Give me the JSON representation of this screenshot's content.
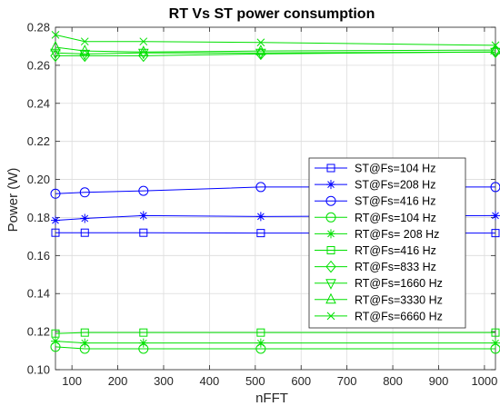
{
  "chart_data": {
    "type": "line",
    "title": "RT Vs ST power consumption",
    "xlabel": "nFFT",
    "ylabel": "Power (W)",
    "xlim": [
      64,
      1024
    ],
    "ylim": [
      0.1,
      0.28
    ],
    "xticks": [
      100,
      200,
      300,
      400,
      500,
      600,
      700,
      800,
      900,
      1000
    ],
    "yticks": [
      0.1,
      0.12,
      0.14,
      0.16,
      0.18,
      0.2,
      0.22,
      0.24,
      0.26,
      0.28
    ],
    "grid": true,
    "legend_position": "right",
    "x": [
      64,
      128,
      256,
      512,
      1024
    ],
    "series": [
      {
        "name": "ST@Fs=104 Hz",
        "marker": "square",
        "color": "#0000ff",
        "values": [
          0.172,
          0.172,
          0.172,
          0.1718,
          0.1718
        ]
      },
      {
        "name": "ST@Fs=208 Hz",
        "marker": "asterisk",
        "color": "#0000ff",
        "values": [
          0.1785,
          0.1795,
          0.181,
          0.1805,
          0.181
        ]
      },
      {
        "name": "ST@Fs=416 Hz",
        "marker": "circle",
        "color": "#0000ff",
        "values": [
          0.1925,
          0.1932,
          0.194,
          0.196,
          0.196
        ]
      },
      {
        "name": "RT@Fs=104 Hz",
        "marker": "circle",
        "color": "#00e000",
        "values": [
          0.112,
          0.111,
          0.111,
          0.111,
          0.111
        ]
      },
      {
        "name": "RT@Fs= 208 Hz",
        "marker": "asterisk",
        "color": "#00e000",
        "values": [
          0.115,
          0.114,
          0.114,
          0.114,
          0.114
        ]
      },
      {
        "name": "RT@Fs=416 Hz",
        "marker": "square",
        "color": "#00e000",
        "values": [
          0.119,
          0.1195,
          0.1195,
          0.1195,
          0.1195
        ]
      },
      {
        "name": "RT@Fs=833 Hz",
        "marker": "diamond",
        "color": "#00e000",
        "values": [
          0.265,
          0.265,
          0.265,
          0.266,
          0.267
        ]
      },
      {
        "name": "RT@Fs=1660 Hz",
        "marker": "triangle-down",
        "color": "#00e000",
        "values": [
          0.2665,
          0.266,
          0.2665,
          0.2665,
          0.267
        ]
      },
      {
        "name": "RT@Fs=3330 Hz",
        "marker": "triangle-up",
        "color": "#00e000",
        "values": [
          0.2695,
          0.2675,
          0.267,
          0.2675,
          0.268
        ]
      },
      {
        "name": "RT@Fs=6660 Hz",
        "marker": "x",
        "color": "#00e000",
        "values": [
          0.276,
          0.2725,
          0.2725,
          0.272,
          0.2705
        ]
      }
    ]
  }
}
